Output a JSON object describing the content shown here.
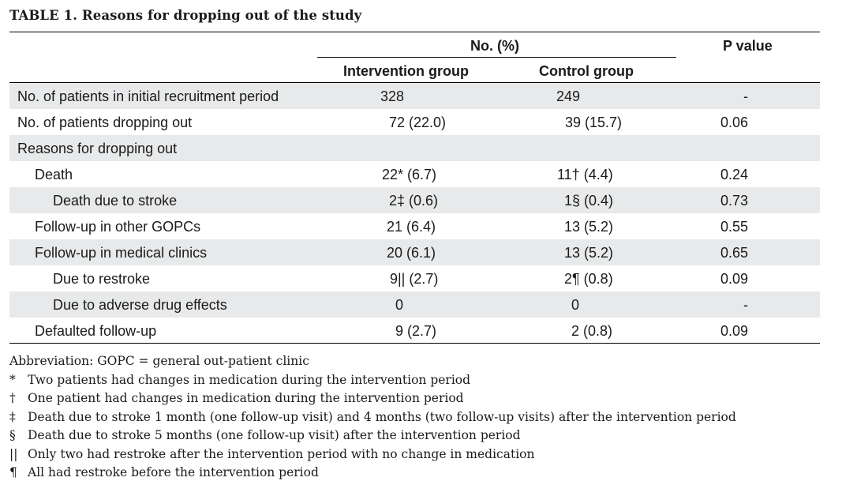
{
  "caption": "TABLE 1. Reasons for dropping out of the study",
  "header": {
    "group_label": "No. (%)",
    "p_label": "P value",
    "col_intervention": "Intervention group",
    "col_control": "Control group"
  },
  "rows": [
    {
      "label": "No. of patients in initial recruitment period",
      "intervention": "328",
      "control": "249",
      "p": "-"
    },
    {
      "label": "No. of patients dropping out",
      "intervention": "72 (22.0)",
      "control": "39 (15.7)",
      "p": "0.06"
    },
    {
      "label": "Reasons for dropping out",
      "intervention": "",
      "control": "",
      "p": ""
    },
    {
      "label": "Death",
      "intervention": "22* (6.7)",
      "control": "11† (4.4)",
      "p": "0.24"
    },
    {
      "label": "Death due to stroke",
      "intervention": "2‡ (0.6)",
      "control": "1§ (0.4)",
      "p": "0.73"
    },
    {
      "label": "Follow-up in other GOPCs",
      "intervention": "21 (6.4)",
      "control": "13 (5.2)",
      "p": "0.55"
    },
    {
      "label": "Follow-up in medical clinics",
      "intervention": "20 (6.1)",
      "control": "13 (5.2)",
      "p": "0.65"
    },
    {
      "label": "Due to restroke",
      "intervention": "9|| (2.7)",
      "control": "2¶ (0.8)",
      "p": "0.09"
    },
    {
      "label": "Due to adverse drug effects",
      "intervention": "0",
      "control": "0",
      "p": "-"
    },
    {
      "label": "Defaulted follow-up",
      "intervention": "9 (2.7)",
      "control": "2 (0.8)",
      "p": "0.09"
    }
  ],
  "notes": {
    "abbreviation": "Abbreviation: GOPC = general out-patient clinic",
    "items": [
      {
        "symbol": "*",
        "text": "Two patients had changes in medication during the intervention period"
      },
      {
        "symbol": "†",
        "text": "One patient had changes in medication during the intervention period"
      },
      {
        "symbol": "‡",
        "text": "Death due to stroke 1 month (one follow-up visit) and 4 months (two follow-up visits) after the intervention period"
      },
      {
        "symbol": "§",
        "text": "Death due to stroke 5 months (one follow-up visit) after the intervention period"
      },
      {
        "symbol": "||",
        "text": "Only two had restroke after the intervention period with no change in medication"
      },
      {
        "symbol": "¶",
        "text": "All had restroke before the intervention period"
      }
    ]
  }
}
